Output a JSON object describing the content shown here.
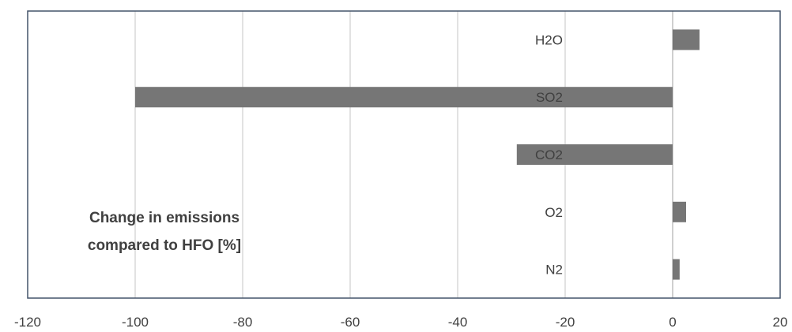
{
  "chart_data": {
    "type": "bar",
    "orientation": "horizontal",
    "categories": [
      "H2O",
      "SO2",
      "CO2",
      "O2",
      "N2"
    ],
    "values": [
      5,
      -100,
      -29,
      2.5,
      1.3
    ],
    "xlim": [
      -120,
      20
    ],
    "xticks": [
      "-120",
      "-100",
      "-80",
      "-60",
      "-40",
      "-20",
      "0",
      "20"
    ],
    "annotation": [
      "Change in emissions",
      "compared to HFO [%]"
    ],
    "grid": "vertical",
    "bar_color": "#767676",
    "grid_color": "#d9d9d9",
    "axis_color": "#44546a",
    "text_color": "#404040"
  }
}
